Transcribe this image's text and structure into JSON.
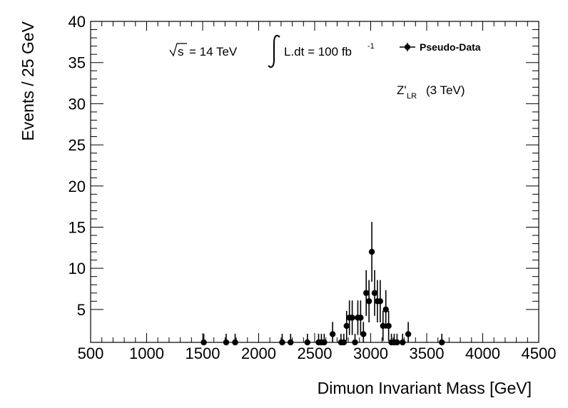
{
  "chart_data": {
    "type": "scatter",
    "title": "",
    "xlabel": "Dimuon Invariant Mass [GeV]",
    "ylabel": "Events / 25 GeV",
    "xlim": [
      500,
      4500
    ],
    "ylim": [
      1,
      40
    ],
    "x_major_ticks": [
      500,
      1000,
      1500,
      2000,
      2500,
      3000,
      3500,
      4000,
      4500
    ],
    "y_major_ticks": [
      5,
      10,
      15,
      20,
      25,
      30,
      35,
      40
    ],
    "legend": {
      "label": "Pseudo-Data",
      "position": "top-right"
    },
    "annotations": {
      "sqrt_s": "s",
      "energy": "= 14 TeV",
      "luminosity_prefix": "L.dt = 100 fb",
      "luminosity_exponent": "-1",
      "model_base": "Z'",
      "model_sub": "LR",
      "model_mass": "(3 TeV)"
    },
    "series": [
      {
        "name": "Pseudo-Data",
        "points": [
          {
            "x": 1510,
            "y": 1
          },
          {
            "x": 1710,
            "y": 1
          },
          {
            "x": 1790,
            "y": 1
          },
          {
            "x": 2210,
            "y": 1
          },
          {
            "x": 2285,
            "y": 1
          },
          {
            "x": 2435,
            "y": 1
          },
          {
            "x": 2535,
            "y": 1
          },
          {
            "x": 2560,
            "y": 1
          },
          {
            "x": 2585,
            "y": 1
          },
          {
            "x": 2660,
            "y": 2
          },
          {
            "x": 2735,
            "y": 1
          },
          {
            "x": 2760,
            "y": 1
          },
          {
            "x": 2785,
            "y": 3
          },
          {
            "x": 2810,
            "y": 4
          },
          {
            "x": 2835,
            "y": 4
          },
          {
            "x": 2860,
            "y": 1
          },
          {
            "x": 2885,
            "y": 4
          },
          {
            "x": 2910,
            "y": 4
          },
          {
            "x": 2935,
            "y": 2
          },
          {
            "x": 2960,
            "y": 7
          },
          {
            "x": 2985,
            "y": 6
          },
          {
            "x": 3010,
            "y": 12
          },
          {
            "x": 3035,
            "y": 7
          },
          {
            "x": 3060,
            "y": 6
          },
          {
            "x": 3085,
            "y": 6
          },
          {
            "x": 3110,
            "y": 3
          },
          {
            "x": 3135,
            "y": 5
          },
          {
            "x": 3160,
            "y": 3
          },
          {
            "x": 3185,
            "y": 1
          },
          {
            "x": 3210,
            "y": 1
          },
          {
            "x": 3235,
            "y": 1
          },
          {
            "x": 3285,
            "y": 1
          },
          {
            "x": 3335,
            "y": 2
          },
          {
            "x": 3635,
            "y": 1
          }
        ]
      }
    ]
  }
}
